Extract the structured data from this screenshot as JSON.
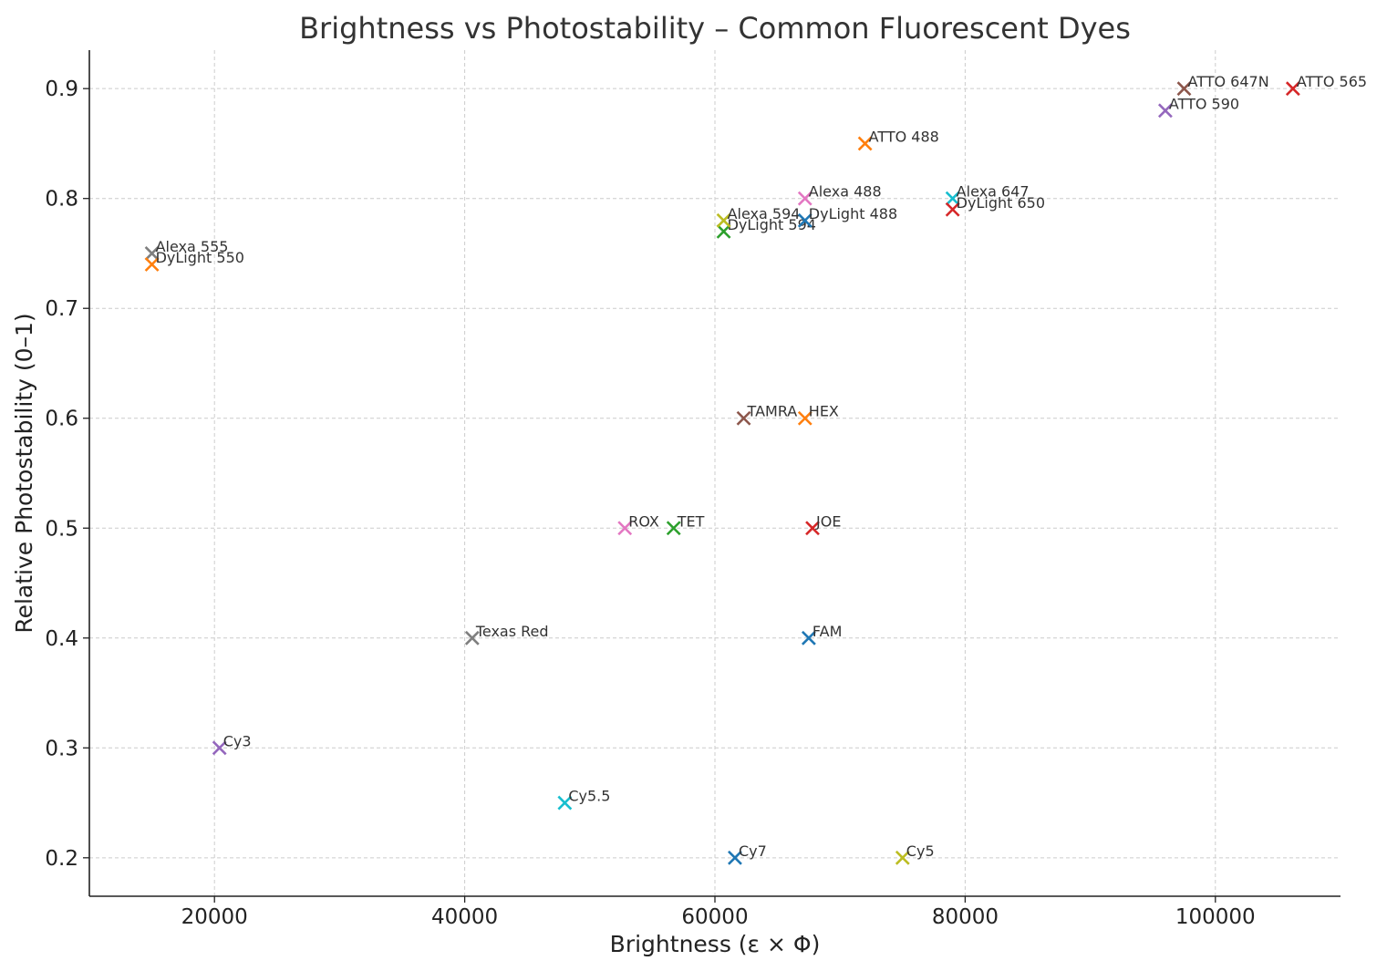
{
  "chart_data": {
    "type": "scatter",
    "title": "Brightness vs Photostability – Common Fluorescent Dyes",
    "xlabel": "Brightness (ε × Φ)",
    "ylabel": "Relative Photostability (0–1)",
    "xlim": [
      10000,
      110000
    ],
    "ylim": [
      0.165,
      0.935
    ],
    "xticks": [
      20000,
      40000,
      60000,
      80000,
      100000
    ],
    "yticks": [
      0.2,
      0.3,
      0.4,
      0.5,
      0.6,
      0.7,
      0.8,
      0.9
    ],
    "xtick_labels": [
      "20000",
      "40000",
      "60000",
      "80000",
      "100000"
    ],
    "ytick_labels": [
      "0.2",
      "0.3",
      "0.4",
      "0.5",
      "0.6",
      "0.7",
      "0.8",
      "0.9"
    ],
    "grid": true,
    "marker": "x",
    "points": [
      {
        "label": "FAM",
        "x": 67500,
        "y": 0.4,
        "color": "#1f77b4"
      },
      {
        "label": "HEX",
        "x": 67200,
        "y": 0.6,
        "color": "#ff7f0e"
      },
      {
        "label": "TET",
        "x": 56700,
        "y": 0.5,
        "color": "#2ca02c"
      },
      {
        "label": "JOE",
        "x": 67800,
        "y": 0.5,
        "color": "#d62728"
      },
      {
        "label": "Cy3",
        "x": 20400,
        "y": 0.3,
        "color": "#9467bd"
      },
      {
        "label": "TAMRA",
        "x": 62300,
        "y": 0.6,
        "color": "#8c564b"
      },
      {
        "label": "ROX",
        "x": 52800,
        "y": 0.5,
        "color": "#e377c2"
      },
      {
        "label": "Texas Red",
        "x": 40600,
        "y": 0.4,
        "color": "#7f7f7f"
      },
      {
        "label": "Cy5",
        "x": 75000,
        "y": 0.2,
        "color": "#bcbd22"
      },
      {
        "label": "Cy5.5",
        "x": 48000,
        "y": 0.25,
        "color": "#17becf"
      },
      {
        "label": "Cy7",
        "x": 61600,
        "y": 0.2,
        "color": "#1f77b4"
      },
      {
        "label": "ATTO 488",
        "x": 72000,
        "y": 0.85,
        "color": "#ff7f0e"
      },
      {
        "label": "DyLight 594",
        "x": 60700,
        "y": 0.77,
        "color": "#2ca02c"
      },
      {
        "label": "ATTO 565",
        "x": 106200,
        "y": 0.9,
        "color": "#d62728"
      },
      {
        "label": "ATTO 590",
        "x": 96000,
        "y": 0.88,
        "color": "#9467bd"
      },
      {
        "label": "ATTO 647N",
        "x": 97500,
        "y": 0.9,
        "color": "#8c564b"
      },
      {
        "label": "Alexa 488",
        "x": 67200,
        "y": 0.8,
        "color": "#e377c2"
      },
      {
        "label": "Alexa 555",
        "x": 15000,
        "y": 0.75,
        "color": "#7f7f7f"
      },
      {
        "label": "Alexa 594",
        "x": 60700,
        "y": 0.78,
        "color": "#bcbd22"
      },
      {
        "label": "Alexa 647",
        "x": 79000,
        "y": 0.8,
        "color": "#17becf"
      },
      {
        "label": "DyLight 488",
        "x": 67200,
        "y": 0.78,
        "color": "#1f77b4"
      },
      {
        "label": "DyLight 550",
        "x": 15000,
        "y": 0.74,
        "color": "#ff7f0e"
      },
      {
        "label": "DyLight 650",
        "x": 79000,
        "y": 0.79,
        "color": "#d62728"
      }
    ]
  }
}
